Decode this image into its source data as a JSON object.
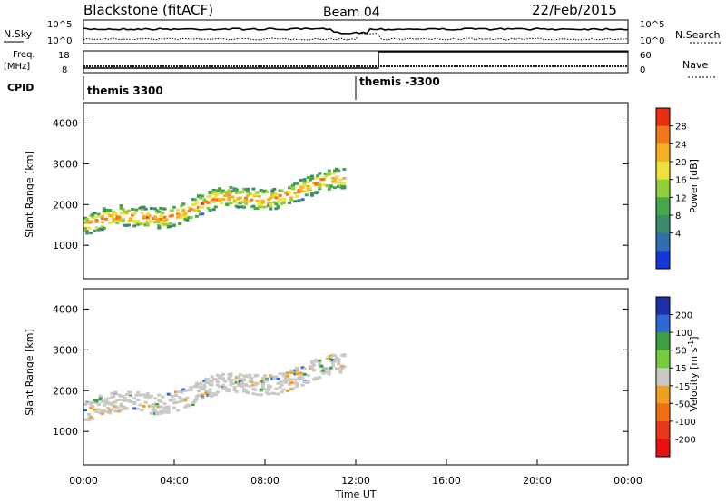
{
  "header": {
    "station": "Blackstone (fitACF)",
    "beam": "Beam 04",
    "date": "22/Feb/2015"
  },
  "side_labels": {
    "nsky": "N.Sky",
    "freq": "Freq.",
    "freq_unit": "[MHz]",
    "cpid": "CPID",
    "nsearch": "N.Search",
    "nave": "Nave"
  },
  "noise_axis": {
    "top": "10^5",
    "bottom": "10^0"
  },
  "freq_axis": {
    "top": "18",
    "bottom": "8"
  },
  "nave_axis": {
    "top": "60",
    "bottom": "0"
  },
  "cpid_segments": [
    {
      "label": "themis 3300",
      "start_hour": 0.0
    },
    {
      "label": "themis -3300",
      "start_hour": 13.0
    }
  ],
  "colors": {
    "power": [
      "#1438d8",
      "#2f6fb0",
      "#3c8a6a",
      "#44a84a",
      "#8fcf3c",
      "#f0e03c",
      "#f8b020",
      "#f07818",
      "#e83010"
    ],
    "velocity": [
      "#1e2fa8",
      "#2f66d8",
      "#3aa040",
      "#76cc3c",
      "#c8c8c4",
      "#f0a020",
      "#f07010",
      "#e83818",
      "#e81010"
    ]
  },
  "chart_data": [
    {
      "type": "heatmap",
      "name": "power-panel",
      "ylabel": "Slant Range [km]",
      "xlim": [
        0,
        24
      ],
      "ylim": [
        180,
        4500
      ],
      "yticks": [
        1000,
        2000,
        3000,
        4000
      ],
      "colorbar": {
        "label": "Power [dB]",
        "ticks": [
          "4",
          "8",
          "12",
          "16",
          "20",
          "24",
          "28"
        ]
      }
    },
    {
      "type": "heatmap",
      "name": "velocity-panel",
      "ylabel": "Slant Range [km]",
      "xlabel": "Time UT",
      "xlim": [
        0,
        24
      ],
      "ylim": [
        180,
        4500
      ],
      "yticks": [
        1000,
        2000,
        3000,
        4000
      ],
      "xticks": [
        "00:00",
        "04:00",
        "08:00",
        "12:00",
        "16:00",
        "20:00",
        "00:00"
      ],
      "colorbar": {
        "label": "Velocity [m s",
        "label_sup": "-1",
        "label_end": "]",
        "ticks": [
          "200",
          "100",
          "50",
          "15",
          "-15",
          "-50",
          "-100",
          "-200"
        ]
      }
    }
  ]
}
